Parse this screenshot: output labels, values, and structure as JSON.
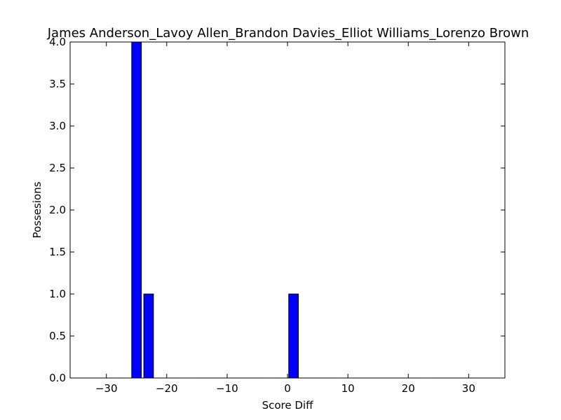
{
  "chart_data": {
    "type": "bar",
    "title": "James Anderson_Lavoy Allen_Brandon Davies_Elliot Williams_Lorenzo Brown",
    "xlabel": "Score Diff",
    "ylabel": "Possesions",
    "xlim": [
      -36,
      36
    ],
    "ylim": [
      0,
      4.0
    ],
    "bin_width": 2,
    "xticks": [
      -30,
      -20,
      -10,
      0,
      10,
      20,
      30
    ],
    "xtick_labels": [
      "−30",
      "−20",
      "−10",
      "0",
      "10",
      "20",
      "30"
    ],
    "yticks": [
      0.0,
      0.5,
      1.0,
      1.5,
      2.0,
      2.5,
      3.0,
      3.5,
      4.0
    ],
    "ytick_labels": [
      "0.0",
      "0.5",
      "1.0",
      "1.5",
      "2.0",
      "2.5",
      "3.0",
      "3.5",
      "4.0"
    ],
    "bins": [
      -36,
      -34,
      -32,
      -30,
      -28,
      -26,
      -24,
      -22,
      -20,
      -18,
      -16,
      -14,
      -12,
      -10,
      -8,
      -6,
      -4,
      -2,
      0,
      2,
      4,
      6,
      8,
      10,
      12,
      14,
      16,
      18,
      20,
      22,
      24,
      26,
      28,
      30,
      32,
      34
    ],
    "values": [
      0,
      0,
      0,
      0,
      0,
      4,
      1,
      0,
      0,
      0,
      0,
      0,
      0,
      0,
      0,
      0,
      0,
      0,
      1,
      0,
      0,
      0,
      0,
      0,
      0,
      0,
      0,
      0,
      0,
      0,
      0,
      0,
      0,
      0,
      0,
      0
    ],
    "bar_color": "#0000ff",
    "edge_color": "#000000",
    "grid": false,
    "legend": "none"
  }
}
